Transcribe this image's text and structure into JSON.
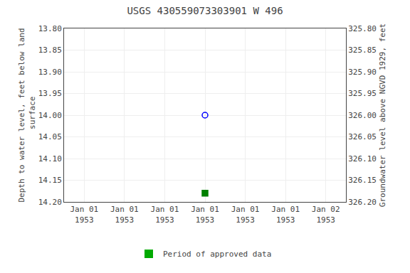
{
  "chart_data": {
    "type": "scatter",
    "title": "USGS 430559073303901 W 496",
    "y_label": "Depth to water level, feet below land\n surface",
    "y2_label": "Groundwater level above NGVD 1929, feet",
    "categories": [
      "Jan 01\n1953",
      "Jan 01\n1953",
      "Jan 01\n1953",
      "Jan 01\n1953",
      "Jan 01\n1953",
      "Jan 01\n1953",
      "Jan 02\n1953"
    ],
    "series": [
      {
        "color": "blue",
        "marker": "open_circle",
        "values": [
          null,
          null,
          null,
          14.0,
          null,
          null,
          null
        ]
      },
      {
        "color": "green",
        "marker": "square",
        "values": [
          null,
          null,
          null,
          14.18,
          null,
          null,
          null
        ]
      },
      {
        "name": "Period of approved data",
        "type": "bar",
        "color": "#00aa00",
        "values": [
          null,
          null,
          null,
          null,
          null,
          null,
          null
        ]
      }
    ],
    "ylim": [
      14.2,
      13.8
    ],
    "yticks": [
      {
        "value": 13.8,
        "label": "13.80"
      },
      13.85,
      {
        "value": 13.9,
        "label": "13.90"
      },
      13.95,
      {
        "value": 14.0,
        "label": "14.00"
      },
      14.05,
      {
        "value": 14.1,
        "label": "14.10"
      },
      14.15,
      {
        "value": 14.2,
        "label": "14.20"
      }
    ],
    "y2lim": [
      326.2,
      325.8
    ],
    "y2ticks": [
      {
        "value": 325.8,
        "label": "325.80"
      },
      325.85,
      {
        "value": 325.9,
        "label": "325.90"
      },
      325.95,
      {
        "value": 326.0,
        "label": "326.00"
      },
      326.05,
      {
        "value": 326.1,
        "label": "326.10"
      },
      326.15,
      {
        "value": 326.2,
        "label": "326.20"
      }
    ],
    "grid": true,
    "legend": "bottom"
  }
}
